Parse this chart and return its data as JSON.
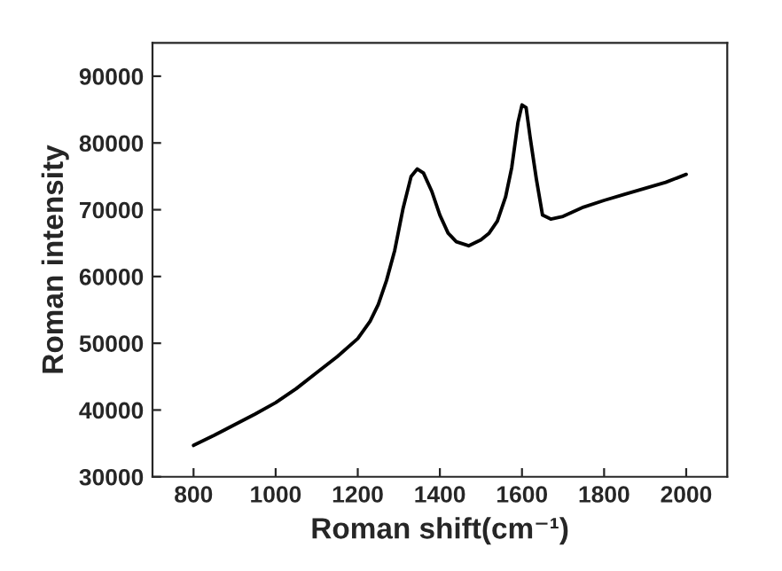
{
  "chart_data": {
    "type": "line",
    "xlabel": "Roman shift(cm⁻¹)",
    "ylabel": "Roman intensity",
    "series": [
      {
        "color": "#000000",
        "x": [
          800,
          850,
          900,
          950,
          1000,
          1050,
          1100,
          1150,
          1200,
          1230,
          1250,
          1270,
          1290,
          1310,
          1330,
          1345,
          1360,
          1380,
          1400,
          1420,
          1440,
          1470,
          1500,
          1520,
          1540,
          1560,
          1575,
          1590,
          1600,
          1610,
          1620,
          1635,
          1650,
          1670,
          1700,
          1750,
          1800,
          1850,
          1900,
          1950,
          2000
        ],
        "values": [
          34700,
          36200,
          37800,
          39400,
          41100,
          43200,
          45600,
          48000,
          50700,
          53300,
          55800,
          59400,
          63900,
          70100,
          75000,
          76100,
          75500,
          72800,
          69200,
          66500,
          65200,
          64600,
          65500,
          66500,
          68300,
          71900,
          76300,
          83000,
          85700,
          85300,
          80800,
          74600,
          69200,
          68600,
          69000,
          70400,
          71400,
          72300,
          73200,
          74100,
          75300
        ]
      }
    ],
    "xlim": [
      700,
      2100
    ],
    "xticks": [
      800,
      1000,
      1200,
      1400,
      1600,
      1800,
      2000
    ],
    "ylim": [
      30000,
      95000
    ],
    "yticks": [
      30000,
      40000,
      50000,
      60000,
      70000,
      80000,
      90000
    ],
    "grid": false,
    "legend": false,
    "marker": "none",
    "line_style": "solid"
  }
}
